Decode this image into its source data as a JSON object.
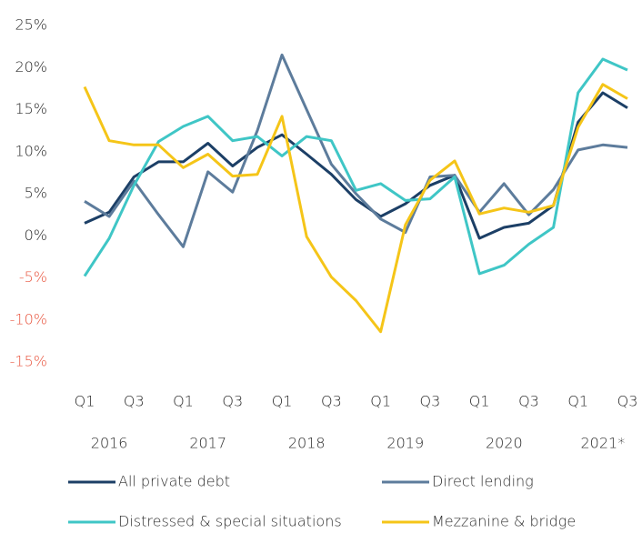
{
  "chart_data": {
    "type": "line",
    "categories": [
      "Q1",
      null,
      "Q3",
      null,
      "Q1",
      null,
      "Q3",
      null,
      "Q1",
      null,
      "Q3",
      null,
      "Q1",
      null,
      "Q3",
      null,
      "Q1",
      null,
      "Q3",
      null,
      "Q1",
      null,
      "Q3"
    ],
    "years": [
      "2016",
      "2017",
      "2018",
      "2019",
      "2020",
      "2021*"
    ],
    "series": [
      {
        "name": "All private debt",
        "color": "#1c3f66",
        "values": [
          1.5,
          2.8,
          7,
          8.8,
          8.8,
          11,
          8.3,
          10.5,
          12,
          9.7,
          7.3,
          4.3,
          2.3,
          3.8,
          6,
          7.2,
          -0.3,
          1,
          1.5,
          3.6,
          13.5,
          17,
          15.2
        ]
      },
      {
        "name": "Direct lending",
        "color": "#5d7c9c",
        "values": [
          4.1,
          2.3,
          6.5,
          2.5,
          -1.3,
          7.6,
          5.2,
          12.5,
          21.5,
          15,
          8.5,
          5,
          2,
          0.4,
          7,
          7.2,
          2.8,
          6.2,
          2.5,
          5.5,
          10.2,
          10.8,
          10.5
        ]
      },
      {
        "name": "Distressed & special situations",
        "color": "#3fc6c6",
        "values": [
          -4.8,
          -0.3,
          6,
          11.2,
          13,
          14.2,
          11.3,
          11.8,
          9.5,
          11.8,
          11.3,
          5.4,
          6.2,
          4.2,
          4.4,
          7,
          -4.5,
          -3.5,
          -1,
          1,
          17,
          21,
          19.7
        ]
      },
      {
        "name": "Mezzanine & bridge",
        "color": "#f5c518",
        "values": [
          17.7,
          11.3,
          10.8,
          10.8,
          8.1,
          9.7,
          7.1,
          7.3,
          14.2,
          -0.1,
          -4.9,
          -7.7,
          -11.4,
          1.3,
          6.6,
          8.9,
          2.6,
          3.3,
          2.8,
          3.6,
          12.9,
          18,
          16.3
        ]
      }
    ],
    "ylim": [
      -15,
      25
    ],
    "yticks": [
      {
        "value": 25,
        "label": "25%"
      },
      {
        "value": 20,
        "label": "20%"
      },
      {
        "value": 15,
        "label": "15%"
      },
      {
        "value": 10,
        "label": "10%"
      },
      {
        "value": 5,
        "label": "5%"
      },
      {
        "value": 0,
        "label": "0%"
      },
      {
        "value": -5,
        "label": "-5%"
      },
      {
        "value": -10,
        "label": "-10%"
      },
      {
        "value": -15,
        "label": "-15%"
      }
    ],
    "negative_tick_color": "#e8553f",
    "grid": false,
    "legend": "bottom"
  }
}
